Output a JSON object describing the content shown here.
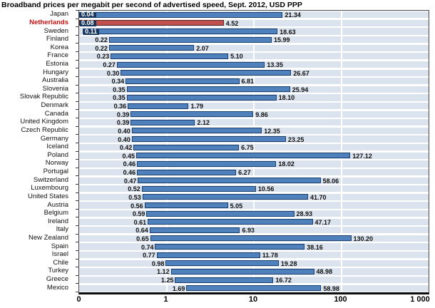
{
  "title": "Broadband prices per megabit per second of advertised speed, Sept. 2012, USD PPP",
  "colors": {
    "bar_fill": "#4f81bd",
    "bar_border": "#1c3f6e",
    "highlight_fill": "#c0504d",
    "highlight_border": "#5e2624",
    "row_band": "#dbe3ee",
    "highlight_label_text": "#cc1111",
    "inside_label_box": "#17365d"
  },
  "chart_data": {
    "type": "bar",
    "orientation": "horizontal",
    "scale": "log",
    "title": "Broadband prices per megabit per second of advertised speed, Sept. 2012, USD PPP",
    "xlabel": "",
    "ylabel": "",
    "xlim": [
      0.1,
      1000
    ],
    "x_ticks": [
      {
        "label": "0",
        "value": 0.1
      },
      {
        "label": "1",
        "value": 1
      },
      {
        "label": "10",
        "value": 10
      },
      {
        "label": "100",
        "value": 100
      },
      {
        "label": "1 000",
        "value": 1000
      }
    ],
    "gridline_values": [
      1,
      10,
      100
    ],
    "legend": "none",
    "rows": [
      {
        "country": "Japan",
        "min": 0.04,
        "max": 21.34,
        "min_label": "0.04",
        "max_label": "21.34",
        "highlight": false,
        "min_label_inside": true
      },
      {
        "country": "Netherlands",
        "min": 0.08,
        "max": 4.52,
        "min_label": "0.08",
        "max_label": "4.52",
        "highlight": true,
        "min_label_inside": true
      },
      {
        "country": "Sweden",
        "min": 0.11,
        "max": 18.63,
        "min_label": "0.11",
        "max_label": "18.63",
        "highlight": false,
        "min_label_inside": true
      },
      {
        "country": "Finland",
        "min": 0.22,
        "max": 15.99,
        "min_label": "0.22",
        "max_label": "15.99",
        "highlight": false,
        "min_label_inside": false
      },
      {
        "country": "Korea",
        "min": 0.22,
        "max": 2.07,
        "min_label": "0.22",
        "max_label": "2.07",
        "highlight": false,
        "min_label_inside": false
      },
      {
        "country": "France",
        "min": 0.23,
        "max": 5.1,
        "min_label": "0.23",
        "max_label": "5.10",
        "highlight": false,
        "min_label_inside": false
      },
      {
        "country": "Estonia",
        "min": 0.27,
        "max": 13.35,
        "min_label": "0.27",
        "max_label": "13.35",
        "highlight": false,
        "min_label_inside": false
      },
      {
        "country": "Hungary",
        "min": 0.3,
        "max": 26.67,
        "min_label": "0.30",
        "max_label": "26.67",
        "highlight": false,
        "min_label_inside": false
      },
      {
        "country": "Australia",
        "min": 0.34,
        "max": 6.81,
        "min_label": "0.34",
        "max_label": "6.81",
        "highlight": false,
        "min_label_inside": false
      },
      {
        "country": "Slovenia",
        "min": 0.35,
        "max": 25.94,
        "min_label": "0.35",
        "max_label": "25.94",
        "highlight": false,
        "min_label_inside": false
      },
      {
        "country": "Slovak Republic",
        "min": 0.35,
        "max": 18.1,
        "min_label": "0.35",
        "max_label": "18.10",
        "highlight": false,
        "min_label_inside": false
      },
      {
        "country": "Denmark",
        "min": 0.36,
        "max": 1.79,
        "min_label": "0.36",
        "max_label": "1.79",
        "highlight": false,
        "min_label_inside": false
      },
      {
        "country": "Canada",
        "min": 0.39,
        "max": 9.86,
        "min_label": "0.39",
        "max_label": "9.86",
        "highlight": false,
        "min_label_inside": false
      },
      {
        "country": "United Kingdom",
        "min": 0.39,
        "max": 2.12,
        "min_label": "0.39",
        "max_label": "2.12",
        "highlight": false,
        "min_label_inside": false
      },
      {
        "country": "Czech Republic",
        "min": 0.4,
        "max": 12.35,
        "min_label": "0.40",
        "max_label": "12.35",
        "highlight": false,
        "min_label_inside": false
      },
      {
        "country": "Germany",
        "min": 0.4,
        "max": 23.25,
        "min_label": "0.40",
        "max_label": "23.25",
        "highlight": false,
        "min_label_inside": false
      },
      {
        "country": "Iceland",
        "min": 0.42,
        "max": 6.75,
        "min_label": "0.42",
        "max_label": "6.75",
        "highlight": false,
        "min_label_inside": false
      },
      {
        "country": "Poland",
        "min": 0.45,
        "max": 127.12,
        "min_label": "0.45",
        "max_label": "127.12",
        "highlight": false,
        "min_label_inside": false
      },
      {
        "country": "Norway",
        "min": 0.46,
        "max": 18.02,
        "min_label": "0.46",
        "max_label": "18.02",
        "highlight": false,
        "min_label_inside": false
      },
      {
        "country": "Portugal",
        "min": 0.46,
        "max": 6.27,
        "min_label": "0.46",
        "max_label": "6.27",
        "highlight": false,
        "min_label_inside": false
      },
      {
        "country": "Switzerland",
        "min": 0.47,
        "max": 58.06,
        "min_label": "0.47",
        "max_label": "58.06",
        "highlight": false,
        "min_label_inside": false
      },
      {
        "country": "Luxembourg",
        "min": 0.52,
        "max": 10.56,
        "min_label": "0.52",
        "max_label": "10.56",
        "highlight": false,
        "min_label_inside": false
      },
      {
        "country": "United States",
        "min": 0.53,
        "max": 41.7,
        "min_label": "0.53",
        "max_label": "41.70",
        "highlight": false,
        "min_label_inside": false
      },
      {
        "country": "Austria",
        "min": 0.56,
        "max": 5.05,
        "min_label": "0.56",
        "max_label": "5.05",
        "highlight": false,
        "min_label_inside": false
      },
      {
        "country": "Belgium",
        "min": 0.59,
        "max": 28.93,
        "min_label": "0.59",
        "max_label": "28.93",
        "highlight": false,
        "min_label_inside": false
      },
      {
        "country": "Ireland",
        "min": 0.61,
        "max": 47.17,
        "min_label": "0.61",
        "max_label": "47.17",
        "highlight": false,
        "min_label_inside": false
      },
      {
        "country": "Italy",
        "min": 0.64,
        "max": 6.93,
        "min_label": "0.64",
        "max_label": "6.93",
        "highlight": false,
        "min_label_inside": false
      },
      {
        "country": "New Zealand",
        "min": 0.65,
        "max": 130.2,
        "min_label": "0.65",
        "max_label": "130.20",
        "highlight": false,
        "min_label_inside": false
      },
      {
        "country": "Spain",
        "min": 0.74,
        "max": 38.16,
        "min_label": "0.74",
        "max_label": "38.16",
        "highlight": false,
        "min_label_inside": false
      },
      {
        "country": "Israel",
        "min": 0.77,
        "max": 11.78,
        "min_label": "0.77",
        "max_label": "11.78",
        "highlight": false,
        "min_label_inside": false
      },
      {
        "country": "Chile",
        "min": 0.98,
        "max": 19.28,
        "min_label": "0.98",
        "max_label": "19.28",
        "highlight": false,
        "min_label_inside": false
      },
      {
        "country": "Turkey",
        "min": 1.12,
        "max": 48.98,
        "min_label": "1.12",
        "max_label": "48.98",
        "highlight": false,
        "min_label_inside": false
      },
      {
        "country": "Greece",
        "min": 1.25,
        "max": 16.72,
        "min_label": "1.25",
        "max_label": "16.72",
        "highlight": false,
        "min_label_inside": false
      },
      {
        "country": "Mexico",
        "min": 1.69,
        "max": 58.98,
        "min_label": "1.69",
        "max_label": "58.98",
        "highlight": false,
        "min_label_inside": false
      }
    ]
  }
}
